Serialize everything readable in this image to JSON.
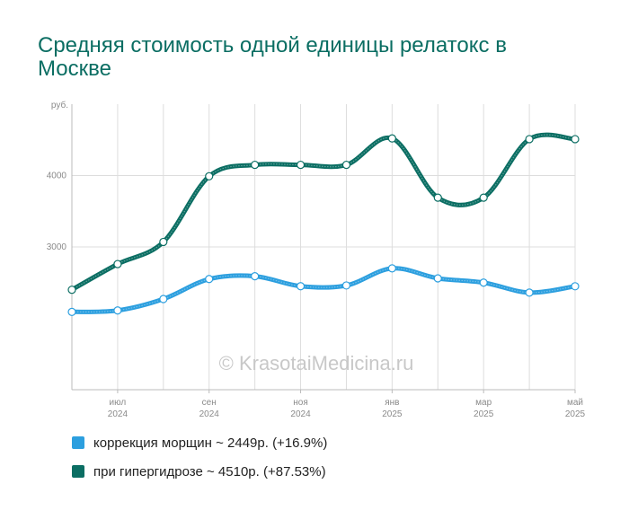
{
  "chart_data": {
    "type": "line",
    "title": "Средняя стоимость одной единицы релатокс в Москве",
    "y_unit": "руб.",
    "y_ticks": [
      3000,
      4000
    ],
    "ylim": [
      1000,
      5000
    ],
    "x_tick_labels": [
      {
        "month": "июл",
        "year": "2024"
      },
      {
        "month": "сен",
        "year": "2024"
      },
      {
        "month": "ноя",
        "year": "2024"
      },
      {
        "month": "янв",
        "year": "2025"
      },
      {
        "month": "мар",
        "year": "2025"
      },
      {
        "month": "май",
        "year": "2025"
      }
    ],
    "x": [
      "2024-06",
      "2024-07",
      "2024-08",
      "2024-09",
      "2024-10",
      "2024-11",
      "2024-12",
      "2025-01",
      "2025-02",
      "2025-03",
      "2025-04",
      "2025-05"
    ],
    "grid": true,
    "legend_position": "bottom",
    "watermark": "© KrasotaiMedicina.ru",
    "series": [
      {
        "name": "коррекция морщин ~ 2449р. (+16.9%)",
        "color": "#2c9fdf",
        "values": [
          2090,
          2110,
          2270,
          2550,
          2590,
          2450,
          2460,
          2700,
          2560,
          2500,
          2360,
          2449
        ]
      },
      {
        "name": "при гипергидрозе ~ 4510р. (+87.53%)",
        "color": "#0b6e63",
        "values": [
          2400,
          2760,
          3070,
          3990,
          4150,
          4150,
          4150,
          4520,
          3690,
          3690,
          4510,
          4510
        ]
      }
    ]
  }
}
